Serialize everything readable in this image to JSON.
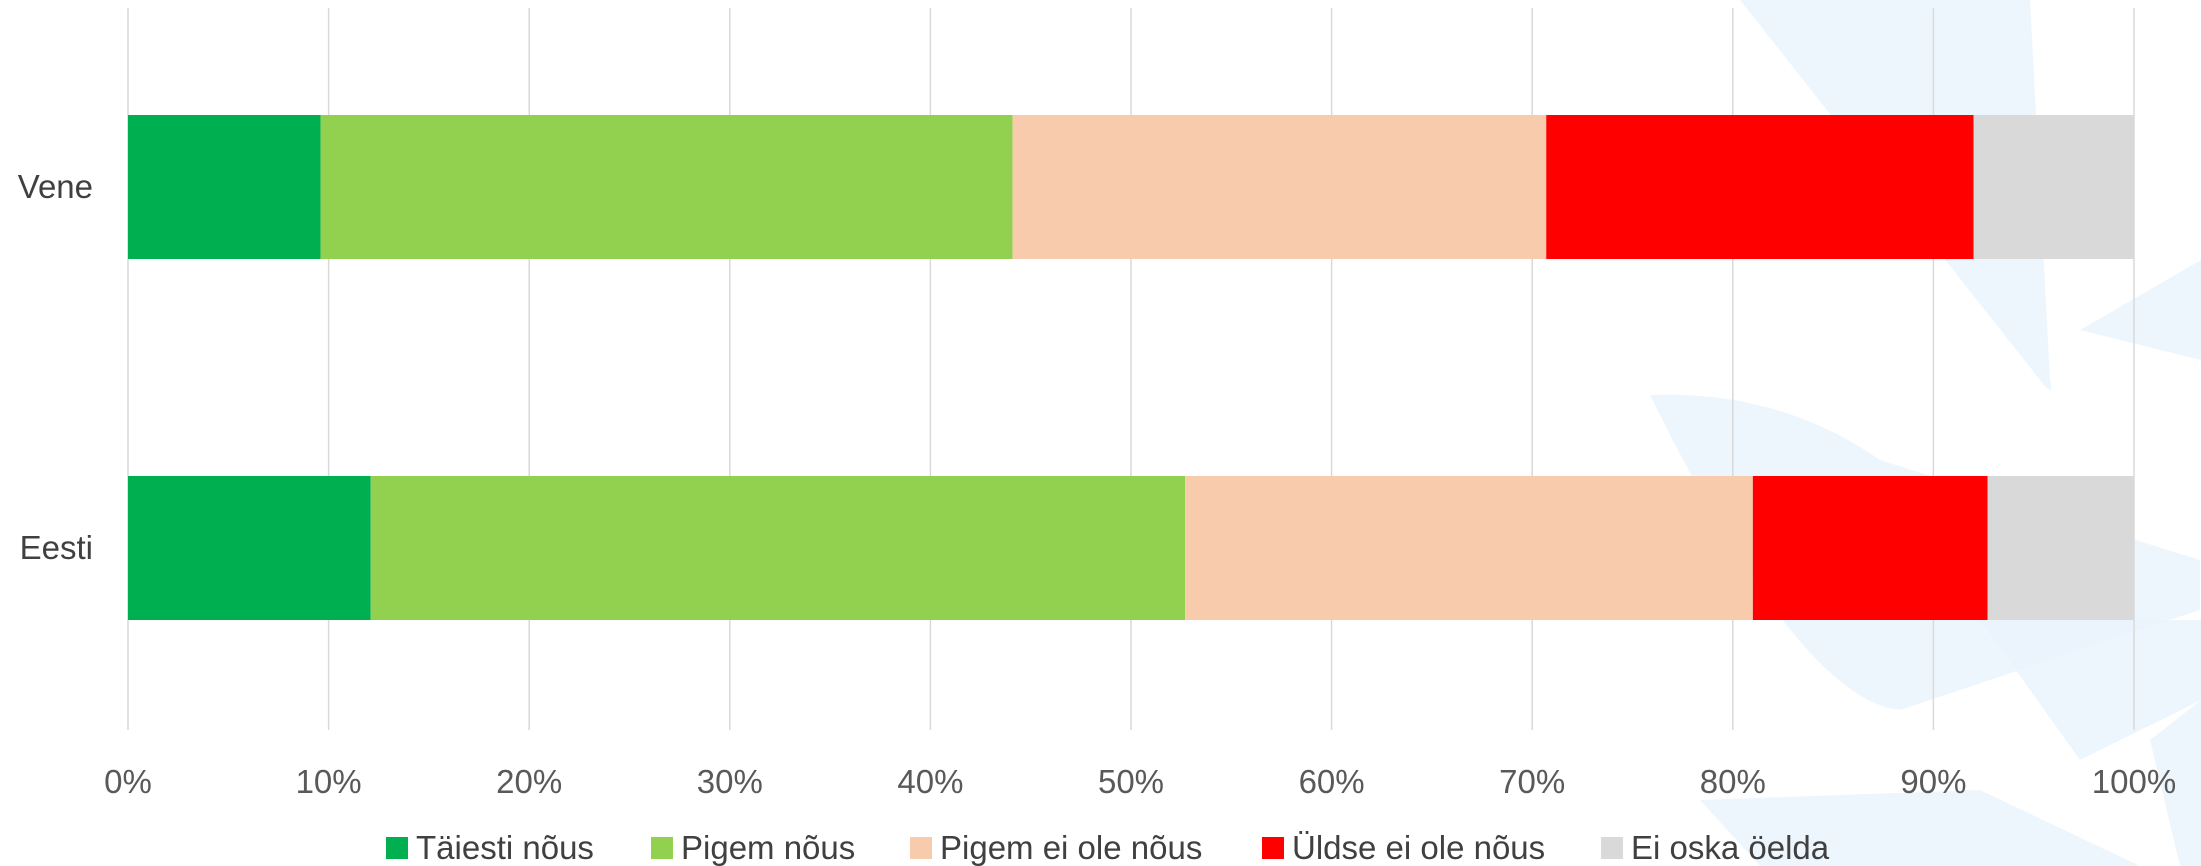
{
  "chart_data": {
    "type": "bar",
    "orientation": "horizontal",
    "stacked": "percent",
    "title": "",
    "xlabel": "",
    "ylabel": "",
    "xlim": [
      0,
      100
    ],
    "x_ticks": [
      "0%",
      "10%",
      "20%",
      "30%",
      "40%",
      "50%",
      "60%",
      "70%",
      "80%",
      "90%",
      "100%"
    ],
    "grid": true,
    "legend_position": "bottom",
    "categories": [
      "Vene",
      "Eesti"
    ],
    "series": [
      {
        "name": "Täiesti nõus",
        "color": "#00b050",
        "values": [
          9.6,
          12.1
        ]
      },
      {
        "name": "Pigem nõus",
        "color": "#92d050",
        "values": [
          34.5,
          40.6
        ]
      },
      {
        "name": "Pigem ei ole nõus",
        "color": "#f8cbad",
        "values": [
          26.6,
          28.3
        ]
      },
      {
        "name": "Üldse ei ole nõus",
        "color": "#ff0000",
        "values": [
          21.3,
          11.7
        ]
      },
      {
        "name": "Ei oska öelda",
        "color": "#d9d9d9",
        "values": [
          8.0,
          7.3
        ]
      }
    ]
  }
}
